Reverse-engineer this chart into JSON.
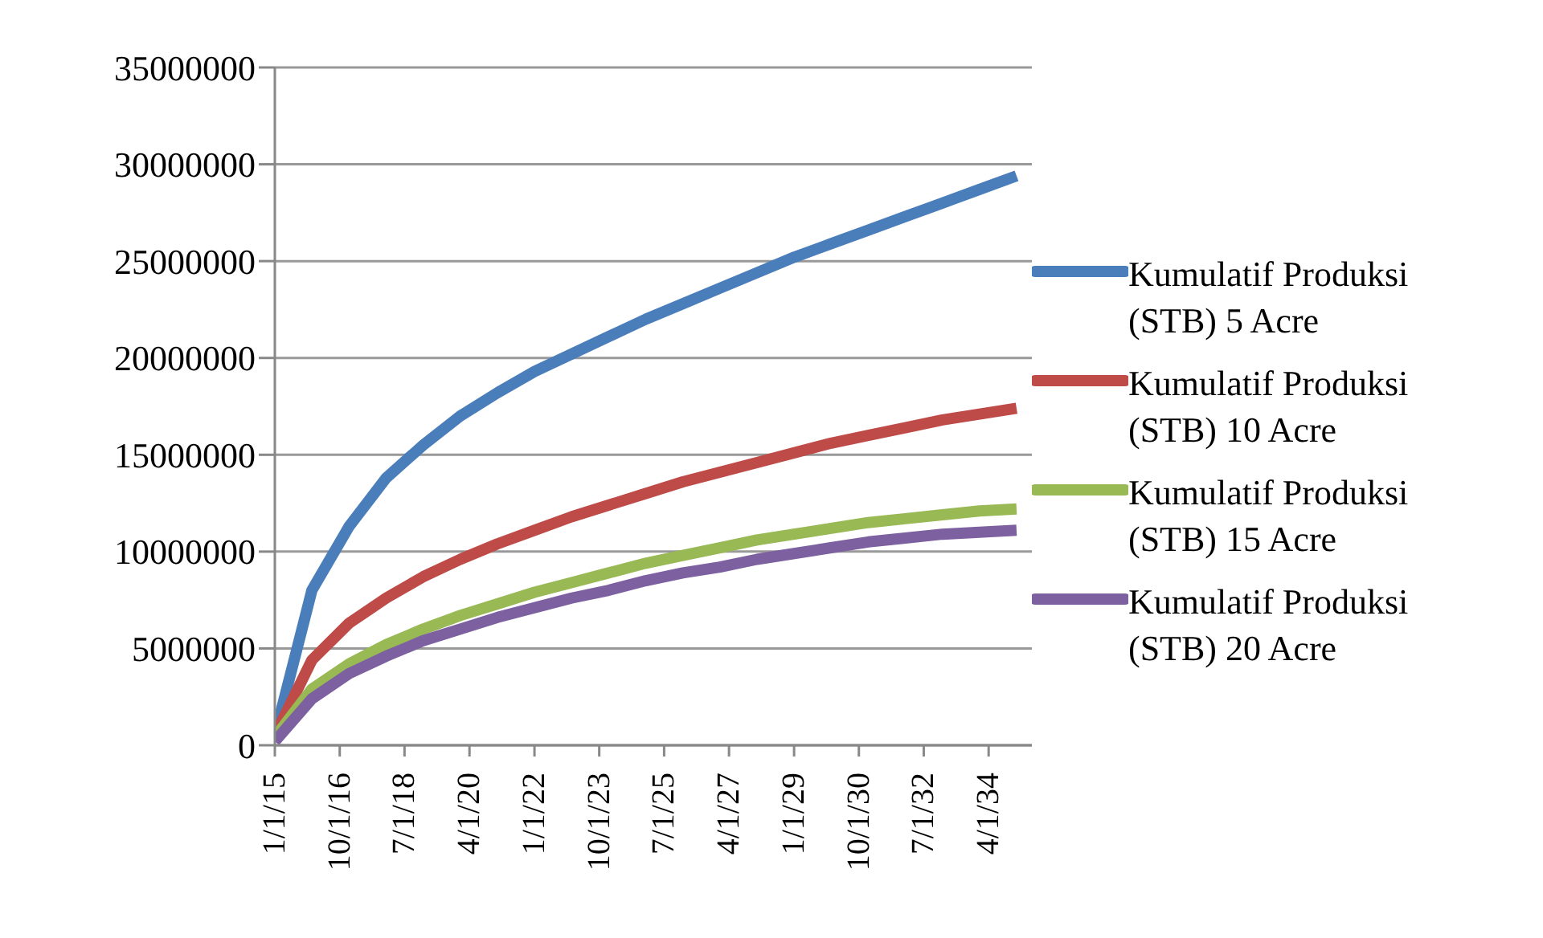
{
  "chart_data": {
    "type": "line",
    "x": [
      "2015-01-01",
      "2016-01-01",
      "2017-01-01",
      "2018-01-01",
      "2019-01-01",
      "2020-01-01",
      "2021-01-01",
      "2022-01-01",
      "2023-01-01",
      "2024-01-01",
      "2025-01-01",
      "2026-01-01",
      "2027-01-01",
      "2028-01-01",
      "2029-01-01",
      "2030-01-01",
      "2031-01-01",
      "2032-01-01",
      "2033-01-01",
      "2034-01-01",
      "2035-01-01"
    ],
    "series": [
      {
        "name": "Kumulatif Produksi (STB) 5 Acre",
        "color": "#4a7ebb",
        "values": [
          500000,
          8000000,
          11300000,
          13800000,
          15500000,
          17000000,
          18200000,
          19300000,
          20200000,
          21100000,
          22000000,
          22800000,
          23600000,
          24400000,
          25200000,
          25900000,
          26600000,
          27300000,
          28000000,
          28700000,
          29400000
        ]
      },
      {
        "name": "Kumulatif Produksi (STB) 10 Acre",
        "color": "#be4b48",
        "values": [
          500000,
          4400000,
          6300000,
          7600000,
          8700000,
          9600000,
          10400000,
          11100000,
          11800000,
          12400000,
          13000000,
          13600000,
          14100000,
          14600000,
          15100000,
          15600000,
          16000000,
          16400000,
          16800000,
          17100000,
          17400000
        ]
      },
      {
        "name": "Kumulatif Produksi (STB) 15 Acre",
        "color": "#98b954",
        "values": [
          400000,
          2900000,
          4200000,
          5200000,
          6000000,
          6700000,
          7300000,
          7900000,
          8400000,
          8900000,
          9400000,
          9800000,
          10200000,
          10600000,
          10900000,
          11200000,
          11500000,
          11700000,
          11900000,
          12100000,
          12200000
        ]
      },
      {
        "name": "Kumulatif Produksi (STB) 20 Acre",
        "color": "#7d60a0",
        "values": [
          200000,
          2400000,
          3700000,
          4600000,
          5400000,
          6000000,
          6600000,
          7100000,
          7600000,
          8000000,
          8500000,
          8900000,
          9200000,
          9600000,
          9900000,
          10200000,
          10500000,
          10700000,
          10900000,
          11000000,
          11100000
        ]
      }
    ],
    "xlim": [
      "2015-01-01",
      "2035-06-01"
    ],
    "xticks": [
      {
        "value": "2015-01-01",
        "label": "1/1/15"
      },
      {
        "value": "2016-10-01",
        "label": "10/1/16"
      },
      {
        "value": "2018-07-01",
        "label": "7/1/18"
      },
      {
        "value": "2020-04-01",
        "label": "4/1/20"
      },
      {
        "value": "2022-01-01",
        "label": "1/1/22"
      },
      {
        "value": "2023-10-01",
        "label": "10/1/23"
      },
      {
        "value": "2025-07-01",
        "label": "7/1/25"
      },
      {
        "value": "2027-04-01",
        "label": "4/1/27"
      },
      {
        "value": "2029-01-01",
        "label": "1/1/29"
      },
      {
        "value": "2030-10-01",
        "label": "10/1/30"
      },
      {
        "value": "2032-07-01",
        "label": "7/1/32"
      },
      {
        "value": "2034-04-01",
        "label": "4/1/34"
      }
    ],
    "ylim": [
      0,
      35000000
    ],
    "yticks": [
      0,
      5000000,
      10000000,
      15000000,
      20000000,
      25000000,
      30000000,
      35000000
    ],
    "grid": "y",
    "legend": "right",
    "marker": "none",
    "line_style": "solid"
  }
}
